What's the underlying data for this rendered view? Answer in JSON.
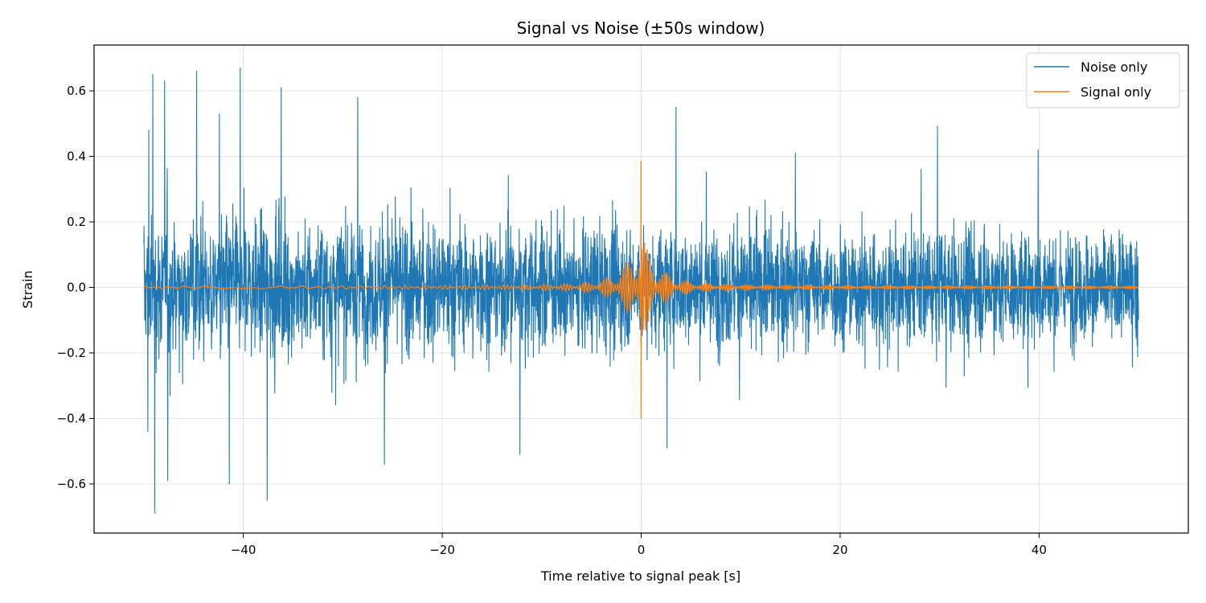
{
  "chart_data": {
    "type": "line",
    "title": "Signal vs Noise (±50s window)",
    "xlabel": "Time relative to signal peak [s]",
    "ylabel": "Strain",
    "xlim": [
      -55,
      55
    ],
    "ylim": [
      -0.75,
      0.74
    ],
    "x_range_data": [
      -50,
      50
    ],
    "xticks": [
      -40,
      -20,
      0,
      20,
      40
    ],
    "xtick_labels": [
      "−40",
      "−20",
      "0",
      "20",
      "40"
    ],
    "yticks": [
      -0.6,
      -0.4,
      -0.2,
      0.0,
      0.2,
      0.4,
      0.6
    ],
    "ytick_labels": [
      "−0.6",
      "−0.4",
      "−0.2",
      "0.0",
      "0.2",
      "0.4",
      "0.6"
    ],
    "grid": true,
    "legend_position": "top-right",
    "colors": {
      "noise": "#1f77b4",
      "signal": "#ff7f0e"
    },
    "series": [
      {
        "name": "Noise only",
        "key": "noise",
        "description": "dense random noise, approx ±0.3 typical, extremes about +0.67 / -0.69",
        "envelope_typical": 0.3,
        "peaks": [
          {
            "x": -49.6,
            "y": -0.44
          },
          {
            "x": -49.5,
            "y": 0.48
          },
          {
            "x": -49.1,
            "y": 0.65
          },
          {
            "x": -48.9,
            "y": -0.69
          },
          {
            "x": -47.9,
            "y": 0.63
          },
          {
            "x": -47.6,
            "y": -0.59
          },
          {
            "x": -44.7,
            "y": 0.66
          },
          {
            "x": -42.4,
            "y": 0.53
          },
          {
            "x": -41.4,
            "y": -0.6
          },
          {
            "x": -40.3,
            "y": 0.67
          },
          {
            "x": -37.6,
            "y": -0.65
          },
          {
            "x": -36.2,
            "y": 0.61
          },
          {
            "x": -28.5,
            "y": 0.58
          },
          {
            "x": -25.8,
            "y": -0.54
          },
          {
            "x": -12.2,
            "y": -0.51
          },
          {
            "x": 2.6,
            "y": -0.49
          },
          {
            "x": 3.5,
            "y": 0.55
          },
          {
            "x": 15.5,
            "y": 0.41
          },
          {
            "x": 39.9,
            "y": 0.42
          }
        ]
      },
      {
        "name": "Signal only",
        "key": "signal",
        "description": "near-zero baseline with chirp burst around t=0",
        "peak_x": 0.0,
        "peak_max": 0.385,
        "peak_min": -0.4,
        "burst_amplitude": 0.16
      }
    ]
  }
}
